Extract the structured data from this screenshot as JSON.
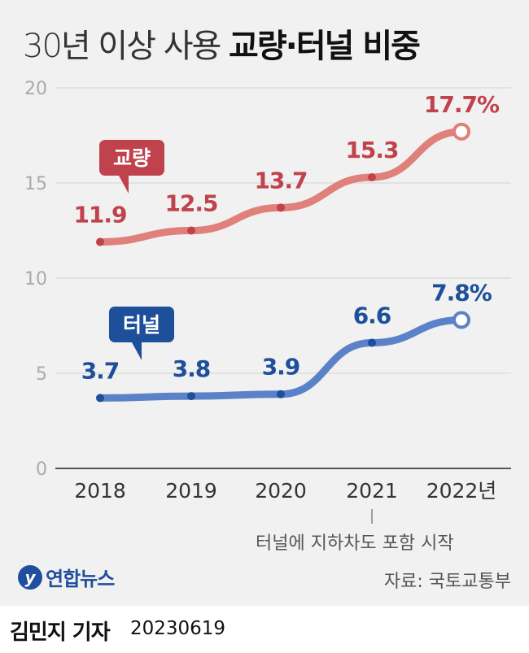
{
  "title": {
    "light": "30년 이상 사용",
    "bold": "교량·터널 비중"
  },
  "chart_data": {
    "type": "line",
    "categories": [
      "2018",
      "2019",
      "2020",
      "2021",
      "2022년"
    ],
    "series": [
      {
        "name": "교량",
        "values": [
          11.9,
          12.5,
          13.7,
          15.3,
          17.7
        ],
        "color": "#e0807b",
        "label_color": "#c0424c",
        "labels": [
          "11.9",
          "12.5",
          "13.7",
          "15.3",
          "17.7%"
        ]
      },
      {
        "name": "터널",
        "values": [
          3.7,
          3.8,
          3.9,
          6.6,
          7.8
        ],
        "color": "#5b82c8",
        "label_color": "#1e4f9a",
        "labels": [
          "3.7",
          "3.8",
          "3.9",
          "6.6",
          "7.8%"
        ]
      }
    ],
    "ylim": [
      0,
      20
    ],
    "yticks": [
      "0",
      "5",
      "10",
      "15",
      "20"
    ],
    "grid": true,
    "annotation": "터널에 지하차도 포함 시작"
  },
  "source": "자료: 국토교통부",
  "logo": "연합뉴스",
  "byline": {
    "name": "김민지 기자",
    "date": "20230619"
  }
}
